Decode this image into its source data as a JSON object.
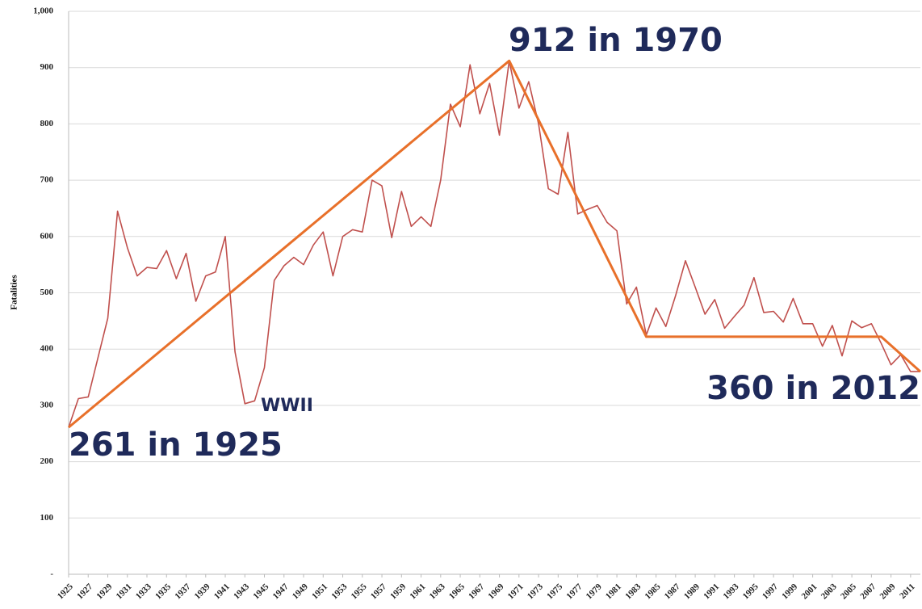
{
  "chart_data": {
    "type": "line",
    "y_label": "Fatalities",
    "annotations": [
      "912 in 1970",
      "261 in 1925",
      "360 in 2012",
      "WWII"
    ],
    "x": [
      1925,
      1926,
      1927,
      1928,
      1929,
      1930,
      1931,
      1932,
      1933,
      1934,
      1935,
      1936,
      1937,
      1938,
      1939,
      1940,
      1941,
      1942,
      1943,
      1944,
      1945,
      1946,
      1947,
      1948,
      1949,
      1950,
      1951,
      1952,
      1953,
      1954,
      1955,
      1956,
      1957,
      1958,
      1959,
      1960,
      1961,
      1962,
      1963,
      1964,
      1965,
      1966,
      1967,
      1968,
      1969,
      1970,
      1971,
      1972,
      1973,
      1974,
      1975,
      1976,
      1977,
      1978,
      1979,
      1980,
      1981,
      1982,
      1983,
      1984,
      1985,
      1986,
      1987,
      1988,
      1989,
      1990,
      1991,
      1992,
      1993,
      1994,
      1995,
      1996,
      1997,
      1998,
      1999,
      2000,
      2001,
      2002,
      2003,
      2004,
      2005,
      2006,
      2007,
      2008,
      2009,
      2010,
      2011,
      2012
    ],
    "xlim": [
      1925,
      2012
    ],
    "xticks": [
      1925,
      1927,
      1929,
      1931,
      1933,
      1935,
      1937,
      1939,
      1941,
      1943,
      1945,
      1947,
      1949,
      1951,
      1953,
      1955,
      1957,
      1959,
      1961,
      1963,
      1965,
      1967,
      1969,
      1971,
      1973,
      1975,
      1977,
      1979,
      1981,
      1983,
      1985,
      1987,
      1989,
      1991,
      1993,
      1995,
      1997,
      1999,
      2001,
      2003,
      2005,
      2007,
      2009,
      2011
    ],
    "ylim": [
      0,
      1000
    ],
    "yticks": [
      {
        "value": 0,
        "label": "-"
      },
      100,
      200,
      300,
      400,
      500,
      600,
      700,
      800,
      900,
      {
        "value": 1000,
        "label": "1,000"
      }
    ],
    "grid": true,
    "series": [
      {
        "color": "#c0504d",
        "values": [
          261,
          312,
          315,
          385,
          455,
          645,
          580,
          530,
          545,
          543,
          575,
          525,
          570,
          485,
          530,
          537,
          600,
          395,
          303,
          308,
          367,
          522,
          548,
          563,
          550,
          585,
          608,
          530,
          600,
          612,
          608,
          700,
          690,
          598,
          680,
          618,
          635,
          618,
          700,
          835,
          795,
          905,
          818,
          872,
          780,
          912,
          828,
          875,
          800,
          685,
          675,
          785,
          640,
          648,
          655,
          625,
          610,
          480,
          510,
          425,
          473,
          440,
          495,
          557,
          510,
          462,
          488,
          437,
          458,
          478,
          527,
          465,
          467,
          448,
          490,
          445,
          445,
          405,
          442,
          388,
          450,
          438,
          445,
          410,
          372,
          390,
          360,
          360
        ]
      },
      {
        "color": "#e8702a",
        "x": [
          1925,
          1970,
          1984,
          2008,
          2012
        ],
        "values": [
          261,
          912,
          422,
          422,
          360
        ]
      }
    ]
  }
}
